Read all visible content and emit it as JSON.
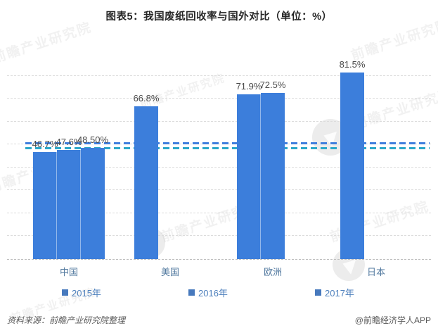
{
  "title": "图表5：我国废纸回收率与国外对比（单位：%）",
  "source_note": "资料来源：前瞻产业研究院整理",
  "credit": "@前瞻经济学人APP",
  "watermark_text": "前瞻产业研究院",
  "colors": {
    "bar": "#3c7edb",
    "legend_text": "#4f81bd",
    "value_label_text": "#4a4a4a",
    "gridline": "#dcdcdc",
    "reference_blue": "#3f7edd",
    "reference_teal": "#2ba7c9"
  },
  "legend": [
    {
      "label": "2015年"
    },
    {
      "label": "2016年"
    },
    {
      "label": "2017年"
    }
  ],
  "chart_data": {
    "type": "bar",
    "title": "图表5：我国废纸回收率与国外对比（单位：%）",
    "unit": "%",
    "categories": [
      "中国",
      "美国",
      "欧洲",
      "日本"
    ],
    "series": [
      {
        "name": "2015年",
        "values": [
          46.7,
          66.8,
          71.9,
          81.5
        ],
        "labels": [
          "46.7%",
          "66.8%",
          "71.9%",
          "81.5%"
        ]
      },
      {
        "name": "2016年",
        "values": [
          47.6,
          null,
          72.5,
          null
        ],
        "labels": [
          "47.6%",
          null,
          "72.5%",
          null
        ]
      },
      {
        "name": "2017年",
        "values": [
          48.5,
          null,
          null,
          null
        ],
        "labels": [
          "48.50%",
          null,
          null,
          null
        ]
      }
    ],
    "ylim": [
      0,
      90
    ],
    "grid": true,
    "grid_interval": 10,
    "legend_position": "bottom",
    "bar_color": "#3c7edb",
    "reference_lines": [
      {
        "value": 50.5,
        "color": "#3f7edd",
        "style": "dashed"
      },
      {
        "value": 48.3,
        "color": "#2ba7c9",
        "style": "dashed"
      }
    ]
  }
}
